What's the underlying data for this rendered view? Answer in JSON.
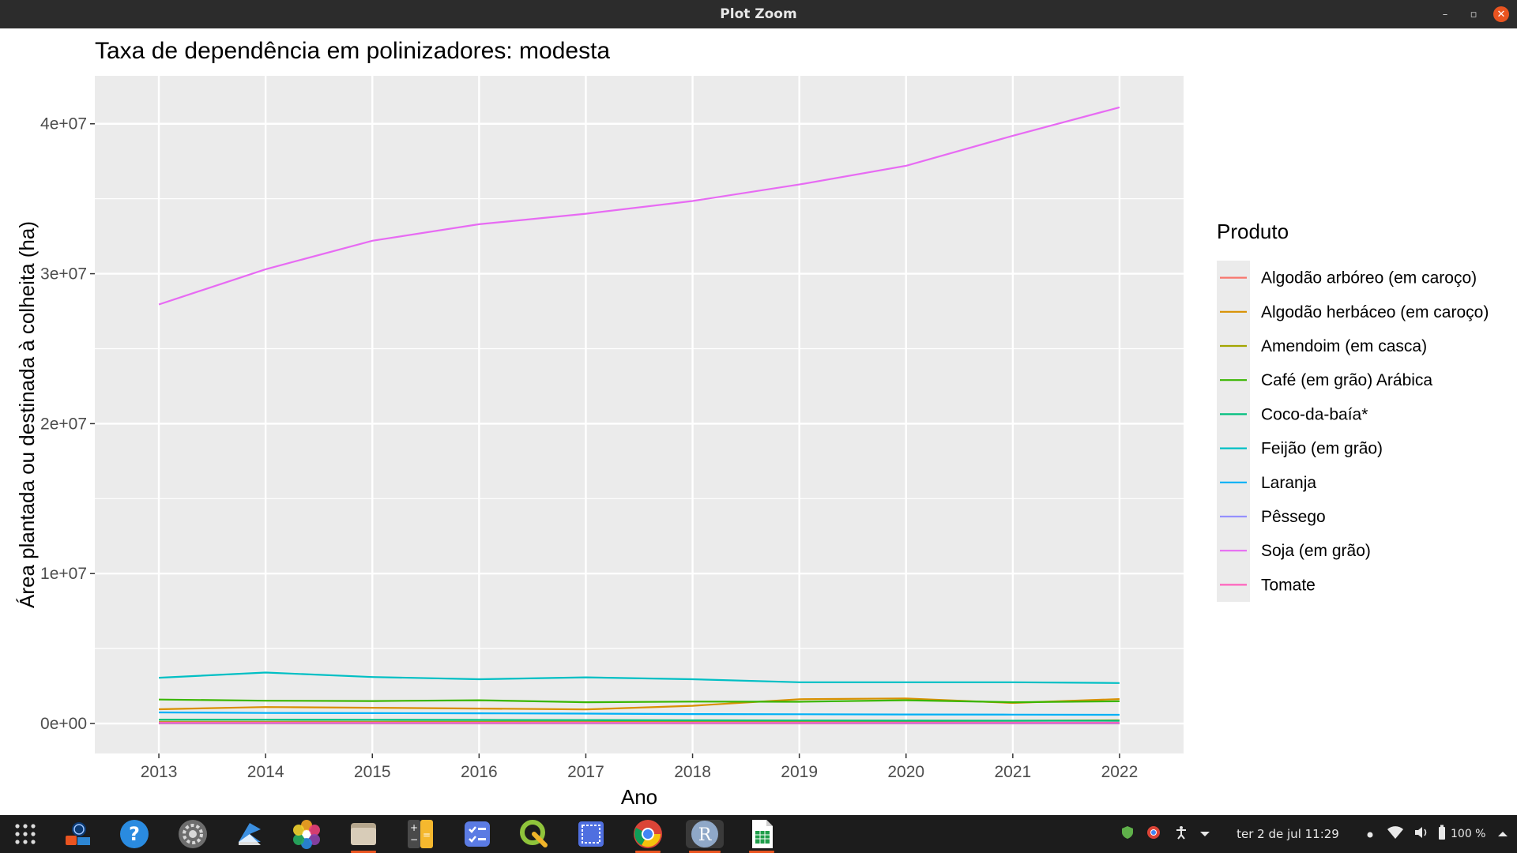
{
  "window": {
    "title": "Plot Zoom"
  },
  "chart_data": {
    "type": "line",
    "title": "Taxa de dependência em polinizadores: modesta",
    "xlabel": "Ano",
    "ylabel": "Área plantada ou destinada à colheita (ha)",
    "x": [
      2013,
      2014,
      2015,
      2016,
      2017,
      2018,
      2019,
      2020,
      2021,
      2022
    ],
    "xlim": [
      2012.4,
      2022.6
    ],
    "ylim": [
      -2000000,
      43200000
    ],
    "yticks": [
      0,
      10000000,
      20000000,
      30000000,
      40000000
    ],
    "ytick_labels": [
      "0e+00",
      "1e+07",
      "2e+07",
      "3e+07",
      "4e+07"
    ],
    "grid": true,
    "legend_title": "Produto",
    "legend_position": "right",
    "series": [
      {
        "name": "Algodão arbóreo (em caroço)",
        "color": "#F8766D",
        "values": [
          200,
          200,
          200,
          200,
          200,
          200,
          200,
          200,
          200,
          200
        ]
      },
      {
        "name": "Algodão herbáceo (em caroço)",
        "color": "#D89000",
        "values": [
          950000,
          1100000,
          1050000,
          1000000,
          940000,
          1180000,
          1620000,
          1670000,
          1370000,
          1630000
        ]
      },
      {
        "name": "Amendoim (em casca)",
        "color": "#A3A500",
        "values": [
          110000,
          110000,
          115000,
          120000,
          125000,
          130000,
          145000,
          160000,
          180000,
          210000
        ]
      },
      {
        "name": "Café (em grão) Arábica",
        "color": "#39B600",
        "values": [
          1600000,
          1520000,
          1500000,
          1550000,
          1420000,
          1460000,
          1450000,
          1550000,
          1420000,
          1480000
        ]
      },
      {
        "name": "Coco-da-baía*",
        "color": "#00BF7D",
        "values": [
          260000,
          255000,
          250000,
          240000,
          230000,
          215000,
          200000,
          190000,
          185000,
          180000
        ]
      },
      {
        "name": "Feijão (em grão)",
        "color": "#00BFC4",
        "values": [
          3050000,
          3400000,
          3100000,
          2950000,
          3080000,
          2950000,
          2750000,
          2750000,
          2750000,
          2700000
        ]
      },
      {
        "name": "Laranja",
        "color": "#00B0F6",
        "values": [
          740000,
          700000,
          690000,
          680000,
          660000,
          630000,
          620000,
          600000,
          590000,
          580000
        ]
      },
      {
        "name": "Pêssego",
        "color": "#9590FF",
        "values": [
          17000,
          17000,
          17000,
          16000,
          16000,
          16000,
          16000,
          15000,
          15000,
          15000
        ]
      },
      {
        "name": "Soja (em grão)",
        "color": "#E76BF3",
        "values": [
          27950000,
          30300000,
          32200000,
          33300000,
          34000000,
          34850000,
          35950000,
          37200000,
          39200000,
          41100000
        ]
      },
      {
        "name": "Tomate",
        "color": "#FF62BC",
        "values": [
          60000,
          62000,
          58000,
          57000,
          60000,
          57000,
          54000,
          52000,
          53000,
          54000
        ]
      }
    ]
  },
  "taskbar": {
    "apps": [
      {
        "name": "app-grid-icon"
      },
      {
        "name": "dell-update-icon"
      },
      {
        "name": "help-icon"
      },
      {
        "name": "settings-icon"
      },
      {
        "name": "remote-desktop-icon"
      },
      {
        "name": "photos-icon"
      },
      {
        "name": "files-icon"
      },
      {
        "name": "calculator-icon"
      },
      {
        "name": "tasks-icon"
      },
      {
        "name": "qgis-icon"
      },
      {
        "name": "screenshot-icon"
      },
      {
        "name": "chrome-icon"
      },
      {
        "name": "r-icon"
      },
      {
        "name": "spreadsheet-icon"
      }
    ],
    "clock": "ter 2 de jul  11:29",
    "battery": "100 %"
  }
}
